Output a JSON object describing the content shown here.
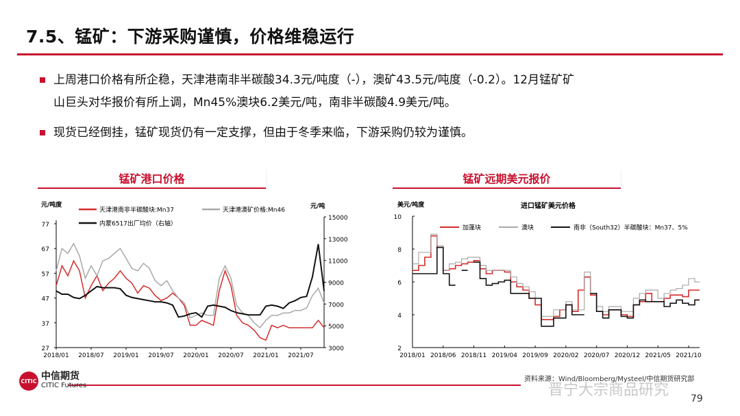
{
  "title": "7.5、锰矿：下游采购谨慎，价格维稳运行",
  "bullets": [
    {
      "line1": "上周港口价格有所企稳，天津港南非半碳酸34.3元/吨度（-），澳矿43.5元/吨度（-0.2）。12月锰矿矿",
      "line2": "山巨头对华报价有所上调，Mn45%澳块6.2美元/吨，南非半碳酸4.9美元/吨。"
    },
    {
      "line1": "现货已经倒挂，锰矿现货仍有一定支撑，但由于冬季来临，下游采购仍较为谨慎。"
    }
  ],
  "colors": {
    "accent": "#c8102e",
    "red_series": "#d42a2a",
    "gray_series": "#a8a8a8",
    "black_series": "#111111"
  },
  "chart_data": [
    {
      "type": "line",
      "header": "锰矿港口价格",
      "title": "",
      "ylabel": "元/吨度",
      "y2label": "元/吨",
      "ylim": [
        27,
        77
      ],
      "yticks": [
        27,
        37,
        47,
        57,
        67,
        77
      ],
      "y2lim": [
        3000,
        15000
      ],
      "y2ticks": [
        3000,
        5000,
        7000,
        9000,
        11000,
        13000,
        15000
      ],
      "xticks": [
        "2018/01",
        "2018/07",
        "2019/01",
        "2019/07",
        "2020/01",
        "2020/07",
        "2021/01",
        "2021/07"
      ],
      "x_start": "2018/01",
      "x_end": "2021/11",
      "frequency": "monthly",
      "series": [
        {
          "name": "天津港南非半碳酸块:Mn37",
          "axis": "left",
          "color": "#d42a2a",
          "values": [
            52,
            60,
            56,
            62,
            58,
            47,
            52,
            56,
            50,
            53,
            55,
            58,
            55,
            53,
            49,
            52,
            51,
            48,
            46,
            47,
            49,
            47,
            44,
            36,
            36,
            38,
            37,
            36,
            50,
            58,
            52,
            40,
            37,
            36,
            34,
            31,
            30,
            36,
            35,
            36,
            35,
            35,
            35,
            35,
            35,
            38,
            35
          ]
        },
        {
          "name": "天津港澳矿价格:Mn46",
          "axis": "left",
          "color": "#a8a8a8",
          "values": [
            58,
            67,
            65,
            69,
            64,
            55,
            60,
            56,
            62,
            63,
            65,
            67,
            63,
            59,
            58,
            61,
            59,
            54,
            52,
            54,
            50,
            47,
            45,
            39,
            40,
            41,
            40,
            40,
            55,
            60,
            55,
            44,
            41,
            40,
            37,
            35,
            38,
            40,
            40,
            41,
            41,
            42,
            42,
            43,
            48,
            51,
            45
          ]
        },
        {
          "name": "内蒙6517出厂均价（右轴）",
          "axis": "right",
          "color": "#111111",
          "values": [
            8200,
            7900,
            7900,
            7600,
            7500,
            7800,
            8200,
            8600,
            8500,
            8500,
            8500,
            8400,
            7800,
            7600,
            7500,
            7400,
            7300,
            7200,
            7200,
            7100,
            6900,
            5800,
            5900,
            6100,
            6200,
            5800,
            6800,
            6900,
            6800,
            6700,
            6400,
            6200,
            6100,
            6000,
            6000,
            6000,
            6800,
            6900,
            6800,
            6600,
            7100,
            7300,
            7600,
            7700,
            9500,
            12500,
            8200
          ]
        }
      ]
    },
    {
      "type": "line",
      "header": "锰矿远期美元报价",
      "title": "进口锰矿美元价格",
      "ylabel": "美元/吨度",
      "ylim": [
        2,
        10
      ],
      "yticks": [
        2,
        4,
        6,
        8,
        10
      ],
      "xticks": [
        "2018/01",
        "2018/06",
        "2018/11",
        "2019/04",
        "2019/09",
        "2020/02",
        "2020/07",
        "2020/12",
        "2021/05",
        "2021/10"
      ],
      "x_start": "2018/01",
      "x_end": "2021/11",
      "frequency": "monthly",
      "series": [
        {
          "name": "加蓬块",
          "color": "#d42a2a",
          "values": [
            6.7,
            7.0,
            7.5,
            8.8,
            8.1,
            6.7,
            6.8,
            7.0,
            7.1,
            7.2,
            7.3,
            6.8,
            6.5,
            6.7,
            6.7,
            6.6,
            6.0,
            5.7,
            5.5,
            5.0,
            4.6,
            3.7,
            3.7,
            3.9,
            4.3,
            4.6,
            4.2,
            5.5,
            6.3,
            5.2,
            4.2,
            4.0,
            4.3,
            4.3,
            4.0,
            3.9,
            4.6,
            4.8,
            5.3,
            4.8,
            4.8,
            5.0,
            5.2,
            5.2,
            5.1,
            5.5,
            5.5
          ]
        },
        {
          "name": "澳块",
          "color": "#a8a8a8",
          "values": [
            7.1,
            7.8,
            7.8,
            8.9,
            8.2,
            6.7,
            7.1,
            7.2,
            7.4,
            7.5,
            7.5,
            7.0,
            6.7,
            6.7,
            6.7,
            6.7,
            6.3,
            5.9,
            5.7,
            5.4,
            5.0,
            3.9,
            3.9,
            4.3,
            4.3,
            4.8,
            4.3,
            4.3,
            6.6,
            5.3,
            4.5,
            4.2,
            4.5,
            4.5,
            4.2,
            4.2,
            5.0,
            5.3,
            5.5,
            5.5,
            5.0,
            5.3,
            5.5,
            5.6,
            5.8,
            6.2,
            6.0
          ]
        },
        {
          "name": "南非（South32）半碳酸块：Mn37、5%",
          "color": "#111111",
          "values": [
            6.5,
            6.5,
            6.5,
            6.5,
            8.1,
            6.5,
            5.8,
            null,
            6.7,
            null,
            7.2,
            6.2,
            5.8,
            5.9,
            6.0,
            6.1,
            5.3,
            5.3,
            5.3,
            5.0,
            5.0,
            3.3,
            3.3,
            3.8,
            3.8,
            4.6,
            4.0,
            4.0,
            null,
            5.3,
            4.2,
            3.8,
            4.3,
            4.3,
            3.9,
            3.8,
            4.6,
            4.9,
            4.8,
            4.8,
            4.8,
            4.5,
            4.7,
            4.9,
            4.7,
            4.6,
            4.9
          ]
        }
      ]
    }
  ],
  "footer": {
    "logo_cn": "中信期货",
    "logo_en": "CITIC Futures",
    "logo_mark": "CITIC",
    "source": "资料来源：Wind/Bloomberg/Mysteel/中信期货研究部",
    "watermark": "晋宁大宗商品研究",
    "page": "79"
  }
}
